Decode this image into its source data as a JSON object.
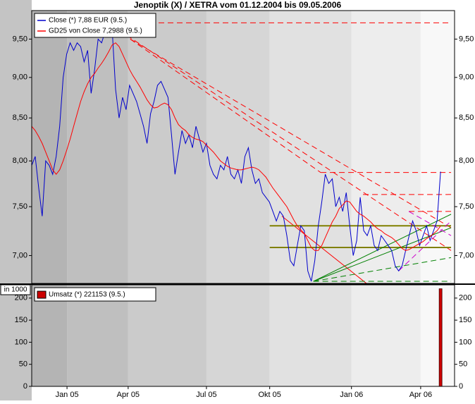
{
  "chart_data": [
    {
      "type": "line",
      "title": "Jenoptik (X) / XETRA vom 01.12.2004 bis 09.05.2006",
      "log": true,
      "xlim": [
        0,
        121
      ],
      "ylim": [
        6.73,
        9.89
      ],
      "xticks": [
        {
          "value": 10.1,
          "label": "Jan 05"
        },
        {
          "value": 27.6,
          "label": "Apr 05"
        },
        {
          "value": 50,
          "label": "Jul 05"
        },
        {
          "value": 68.1,
          "label": "Okt 05"
        },
        {
          "value": 91.5,
          "label": "Jan 06"
        },
        {
          "value": 111.3,
          "label": "Apr 06"
        }
      ],
      "yticks": [
        {
          "value": 7,
          "label": "7,00"
        },
        {
          "value": 7.5,
          "label": "7,50"
        },
        {
          "value": 8,
          "label": "8,00"
        },
        {
          "value": 8.5,
          "label": "8,50"
        },
        {
          "value": 9,
          "label": "9,00"
        },
        {
          "value": 9.5,
          "label": "9,50"
        }
      ],
      "legend": "top-left",
      "series": [
        {
          "name": "Close (*) 7,88 EUR (9.5.)",
          "color": "#0000cc",
          "values": [
            7.95,
            8.05,
            7.7,
            7.4,
            8.0,
            7.95,
            7.85,
            8.05,
            8.4,
            9.0,
            9.3,
            9.45,
            9.35,
            9.45,
            9.4,
            9.2,
            9.35,
            8.8,
            9.1,
            9.5,
            9.45,
            9.6,
            9.55,
            9.65,
            8.85,
            8.5,
            8.75,
            8.6,
            8.9,
            8.8,
            8.7,
            8.55,
            8.4,
            8.2,
            8.55,
            8.7,
            8.9,
            8.95,
            8.85,
            8.75,
            8.3,
            7.85,
            8.1,
            8.35,
            8.2,
            8.3,
            8.15,
            8.4,
            8.25,
            8.1,
            8.2,
            7.95,
            7.85,
            7.8,
            7.95,
            7.9,
            8.05,
            7.85,
            7.8,
            7.9,
            7.75,
            8.05,
            8.15,
            7.9,
            7.75,
            7.8,
            7.65,
            7.6,
            7.55,
            7.45,
            7.35,
            7.45,
            7.4,
            7.2,
            6.95,
            6.9,
            7.1,
            7.3,
            7.25,
            6.85,
            6.75,
            6.95,
            7.3,
            7.55,
            7.85,
            7.75,
            7.8,
            7.5,
            7.6,
            7.45,
            7.65,
            7.3,
            7.0,
            7.15,
            7.6,
            7.25,
            7.2,
            7.3,
            7.1,
            7.05,
            7.2,
            7.15,
            7.1,
            7.05,
            6.9,
            6.85,
            6.9,
            7.05,
            7.2,
            7.35,
            7.25,
            7.1,
            7.2,
            7.3,
            7.15,
            7.25,
            7.35,
            7.88
          ]
        },
        {
          "name": "GD25 von Close 7,2988 (9.5.)",
          "color": "#ff0000",
          "values": [
            8.4,
            8.35,
            8.28,
            8.2,
            8.1,
            8.0,
            7.9,
            7.85,
            7.9,
            8.0,
            8.12,
            8.25,
            8.4,
            8.55,
            8.7,
            8.82,
            8.92,
            9.0,
            9.05,
            9.12,
            9.18,
            9.25,
            9.33,
            9.42,
            9.45,
            9.4,
            9.3,
            9.2,
            9.1,
            9.02,
            8.95,
            8.88,
            8.8,
            8.72,
            8.66,
            8.62,
            8.63,
            8.66,
            8.68,
            8.66,
            8.6,
            8.5,
            8.42,
            8.38,
            8.35,
            8.3,
            8.27,
            8.25,
            8.24,
            8.22,
            8.18,
            8.14,
            8.1,
            8.05,
            8.0,
            7.97,
            7.94,
            7.92,
            7.91,
            7.9,
            7.9,
            7.91,
            7.92,
            7.93,
            7.92,
            7.9,
            7.86,
            7.82,
            7.76,
            7.7,
            7.65,
            7.6,
            7.55,
            7.5,
            7.43,
            7.36,
            7.3,
            7.26,
            7.22,
            7.15,
            7.08,
            7.05,
            7.05,
            7.1,
            7.18,
            7.26,
            7.34,
            7.4,
            7.48,
            7.52,
            7.56,
            7.55,
            7.5,
            7.45,
            7.42,
            7.4,
            7.37,
            7.34,
            7.3,
            7.27,
            7.25,
            7.22,
            7.2,
            7.18,
            7.15,
            7.11,
            7.07,
            7.05,
            7.06,
            7.08,
            7.1,
            7.12,
            7.14,
            7.17,
            7.19,
            7.22,
            7.25,
            7.2988
          ]
        }
      ],
      "trendlines": [
        {
          "color": "#ff0000",
          "dash": true,
          "x": [
            36.3,
            120
          ],
          "y": [
            9.72,
            9.72
          ]
        },
        {
          "color": "#ff0000",
          "dash": true,
          "x": [
            28.2,
            82.7
          ],
          "y": [
            9.5,
            7.87
          ]
        },
        {
          "color": "#ff0000",
          "dash": true,
          "x": [
            28.2,
            120
          ],
          "y": [
            9.5,
            7.28
          ]
        },
        {
          "color": "#ff0000",
          "dash": true,
          "x": [
            27.2,
            120
          ],
          "y": [
            9.55,
            7.05
          ]
        },
        {
          "color": "#ff0000",
          "dash": true,
          "x": [
            82.7,
            120
          ],
          "y": [
            7.87,
            7.87
          ]
        },
        {
          "color": "#ff0000",
          "dash": true,
          "x": [
            94.8,
            120
          ],
          "y": [
            7.63,
            7.63
          ]
        },
        {
          "color": "#ff0000",
          "dash": true,
          "x": [
            107.9,
            120
          ],
          "y": [
            7.45,
            7.45
          ]
        },
        {
          "color": "#ff0000",
          "dash": false,
          "x": [
            71.6,
            95.8
          ],
          "y": [
            7.4,
            6.73
          ]
        },
        {
          "color": "#808000",
          "dash": false,
          "x": [
            68.1,
            120
          ],
          "y": [
            7.3,
            7.3
          ]
        },
        {
          "color": "#808000",
          "dash": false,
          "x": [
            68.1,
            120
          ],
          "y": [
            7.08,
            7.08
          ]
        },
        {
          "color": "#008000",
          "dash": false,
          "x": [
            80.6,
            120
          ],
          "y": [
            6.75,
            7.42
          ]
        },
        {
          "color": "#008000",
          "dash": false,
          "x": [
            80.6,
            120
          ],
          "y": [
            6.75,
            7.28
          ]
        },
        {
          "color": "#008000",
          "dash": true,
          "x": [
            80.6,
            120
          ],
          "y": [
            6.75,
            6.98
          ]
        },
        {
          "color": "#008000",
          "dash": true,
          "x": [
            80.6,
            120
          ],
          "y": [
            6.75,
            6.75
          ]
        },
        {
          "color": "#cc00cc",
          "dash": true,
          "x": [
            107.9,
            120
          ],
          "y": [
            7.45,
            7.2
          ]
        },
        {
          "color": "#cc00cc",
          "dash": true,
          "x": [
            105,
            120
          ],
          "y": [
            6.85,
            7.35
          ]
        }
      ]
    },
    {
      "type": "bar",
      "ylabel": "in 1000",
      "xlim": [
        0,
        121
      ],
      "ylim": [
        0,
        230
      ],
      "yticks": [
        0,
        50,
        100,
        150,
        200
      ],
      "legend": "top-left",
      "series": [
        {
          "name": "Umsatz (*) 221153 (9.5.)",
          "color": "#cc0000",
          "x": [
            117
          ],
          "values": [
            221.153
          ]
        }
      ]
    }
  ]
}
